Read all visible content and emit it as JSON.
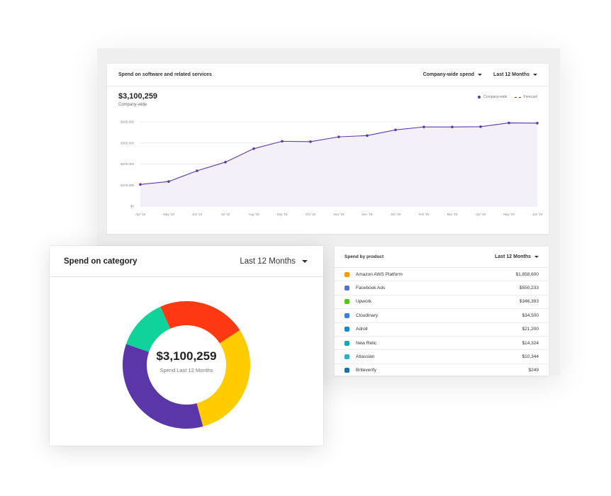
{
  "spend_chart": {
    "title": "Spend on software and related services",
    "scope_dropdown": "Company-wide spend",
    "period_dropdown": "Last 12 Months",
    "total": "$3,100,259",
    "total_label": "Company-wide",
    "legend": [
      {
        "label": "Company-wide",
        "style": "dot"
      },
      {
        "label": "Forecast",
        "style": "dash"
      }
    ]
  },
  "chart_data": {
    "type": "area",
    "categories": [
      "Apr '18",
      "May '18",
      "Jun '18",
      "Jul '18",
      "Aug '18",
      "Sep '18",
      "Oct '18",
      "Nov '18",
      "Dec '18",
      "Jan '19",
      "Feb '19",
      "Mar '19",
      "Apr '19",
      "May '19",
      "Jun '19"
    ],
    "y_tick_labels": [
      "$0",
      "$100,000",
      "$200,000",
      "$300,000",
      "$400,000"
    ],
    "ylim": [
      0,
      400000
    ],
    "grid": true,
    "legend_position": "top-right",
    "series": [
      {
        "name": "Company-wide",
        "color": "#5b3aa6",
        "values": [
          103000,
          117000,
          168000,
          209000,
          273000,
          308000,
          306000,
          329000,
          335000,
          362000,
          376000,
          376000,
          377000,
          395000,
          394000
        ]
      }
    ]
  },
  "product_card": {
    "title": "Spend by product",
    "period_dropdown": "Last 12 Months",
    "products": [
      {
        "name": "Amazon AWS Platform",
        "amount": "$1,858,600",
        "icon": "aws-icon",
        "color": "#ff9900"
      },
      {
        "name": "Facebook Ads",
        "amount": "$550,233",
        "icon": "facebook-ads-icon",
        "color": "#5b6fd1"
      },
      {
        "name": "Upwork",
        "amount": "$346,393",
        "icon": "upwork-icon",
        "color": "#52c41a"
      },
      {
        "name": "Cloudinary",
        "amount": "$34,500",
        "icon": "cloudinary-icon",
        "color": "#3f7ed8"
      },
      {
        "name": "Adroll",
        "amount": "$21,200",
        "icon": "adroll-icon",
        "color": "#1e88c7"
      },
      {
        "name": "New Relic",
        "amount": "$14,324",
        "icon": "new-relic-icon",
        "color": "#11a7b5"
      },
      {
        "name": "Atlassian",
        "amount": "$10,344",
        "icon": "atlassian-icon",
        "color": "#2bb0c4"
      },
      {
        "name": "Briteverify",
        "amount": "$249",
        "icon": "briteverify-icon",
        "color": "#1d6fa8"
      }
    ]
  },
  "category_card": {
    "title": "Spend on category",
    "period_dropdown": "Last 12 Months",
    "center_value": "$3,100,259",
    "center_label": "Spend Last 12 Months",
    "segments": [
      {
        "color": "#ff3a12",
        "fraction": 0.225
      },
      {
        "color": "#ffcc00",
        "fraction": 0.3
      },
      {
        "color": "#5b36a8",
        "fraction": 0.345
      },
      {
        "color": "#0fd39b",
        "fraction": 0.13
      }
    ]
  }
}
